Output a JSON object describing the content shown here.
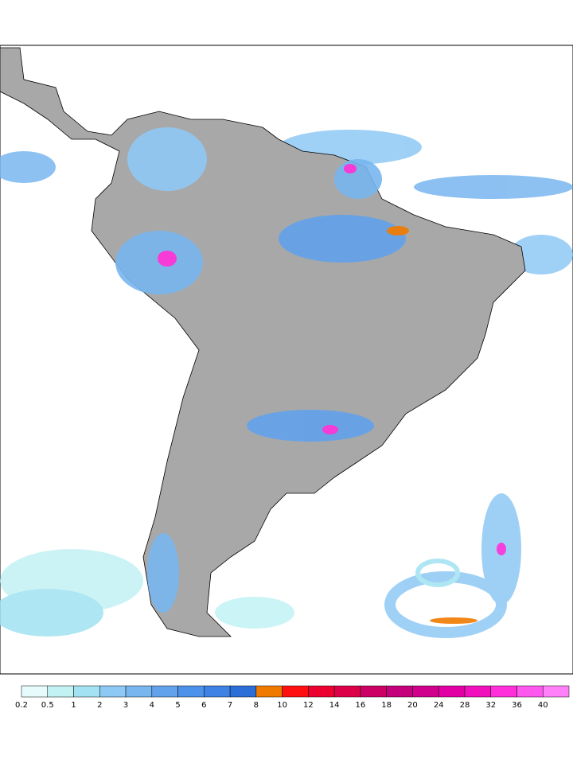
{
  "legend": {
    "levels": [
      0.2,
      0.5,
      1,
      2,
      3,
      4,
      5,
      6,
      7,
      8,
      10,
      12,
      14,
      16,
      18,
      20,
      24,
      28,
      32,
      36,
      40
    ],
    "colors": [
      "#e6fcfc",
      "#c2f2f4",
      "#a2e2f2",
      "#8ec8f4",
      "#78b6f0",
      "#62a2ec",
      "#4c92ea",
      "#3e82e6",
      "#2c6ed8",
      "#f07a00",
      "#ff1010",
      "#ec0030",
      "#dc0048",
      "#cc0064",
      "#c4007c",
      "#d0008c",
      "#e200a4",
      "#f010bc",
      "#ff30dc",
      "#ff58ee",
      "#ff80f8"
    ]
  }
}
